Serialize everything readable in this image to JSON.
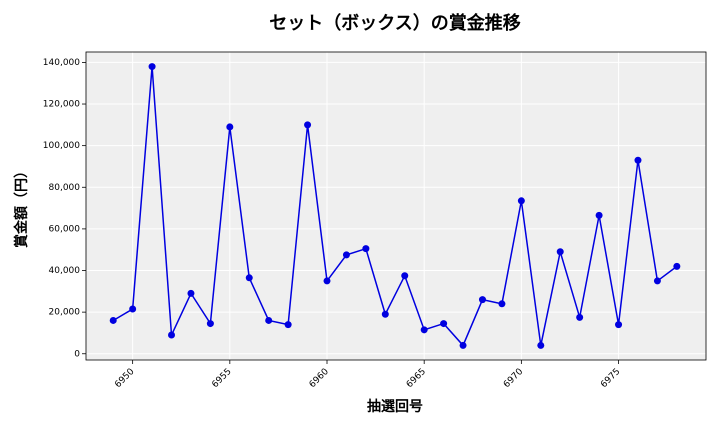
{
  "chart_data": {
    "type": "line",
    "title": "セット（ボックス）の賞金推移",
    "x_label": "抽選回号",
    "y_label": "賞金額（円）",
    "x": [
      6949,
      6950,
      6951,
      6952,
      6953,
      6954,
      6955,
      6956,
      6957,
      6958,
      6959,
      6960,
      6961,
      6962,
      6963,
      6964,
      6965,
      6966,
      6967,
      6968,
      6969,
      6970,
      6971,
      6972,
      6973,
      6974,
      6975,
      6976,
      6977,
      6978
    ],
    "values": [
      16000,
      21500,
      138000,
      9000,
      29000,
      14500,
      109000,
      36500,
      16000,
      14000,
      110000,
      35000,
      47500,
      50500,
      19000,
      37500,
      11500,
      14500,
      4000,
      26000,
      24000,
      73500,
      4000,
      49000,
      17500,
      66500,
      14000,
      93000,
      35000,
      42000
    ],
    "color": "#0000e0",
    "xlim": [
      6947.6,
      6979.5
    ],
    "ylim": [
      -3000,
      145000
    ],
    "xticks": [
      6950,
      6955,
      6960,
      6965,
      6970,
      6975
    ],
    "yticks": [
      0,
      {
        "value": 20000,
        "label": "20,000"
      },
      {
        "value": 40000,
        "label": "40,000"
      },
      {
        "value": 60000,
        "label": "60,000"
      },
      {
        "value": 80000,
        "label": "80,000"
      },
      {
        "value": 100000,
        "label": "100,000"
      },
      {
        "value": 120000,
        "label": "120,000"
      },
      {
        "value": 140000,
        "label": "140,000"
      }
    ],
    "grid": true
  }
}
